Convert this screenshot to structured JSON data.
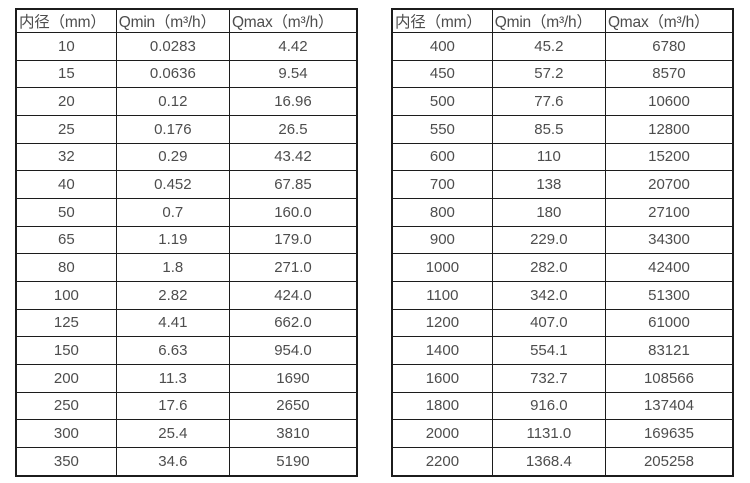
{
  "colors": {
    "background": "#ffffff",
    "border": "#1c1c1c",
    "text": "#4d4d4d"
  },
  "tables": [
    {
      "name": "flow-range-small-diameters",
      "headers": [
        "内径（mm）",
        "Qmin（m³/h）",
        "Qmax（m³/h）"
      ],
      "rows": [
        [
          "10",
          "0.0283",
          "4.42"
        ],
        [
          "15",
          "0.0636",
          "9.54"
        ],
        [
          "20",
          "0.12",
          "16.96"
        ],
        [
          "25",
          "0.176",
          "26.5"
        ],
        [
          "32",
          "0.29",
          "43.42"
        ],
        [
          "40",
          "0.452",
          "67.85"
        ],
        [
          "50",
          "0.7",
          "160.0"
        ],
        [
          "65",
          "1.19",
          "179.0"
        ],
        [
          "80",
          "1.8",
          "271.0"
        ],
        [
          "100",
          "2.82",
          "424.0"
        ],
        [
          "125",
          "4.41",
          "662.0"
        ],
        [
          "150",
          "6.63",
          "954.0"
        ],
        [
          "200",
          "11.3",
          "1690"
        ],
        [
          "250",
          "17.6",
          "2650"
        ],
        [
          "300",
          "25.4",
          "3810"
        ],
        [
          "350",
          "34.6",
          "5190"
        ]
      ]
    },
    {
      "name": "flow-range-large-diameters",
      "headers": [
        "内径（mm）",
        "Qmin（m³/h）",
        "Qmax（m³/h）"
      ],
      "rows": [
        [
          "400",
          "45.2",
          "6780"
        ],
        [
          "450",
          "57.2",
          "8570"
        ],
        [
          "500",
          "77.6",
          "10600"
        ],
        [
          "550",
          "85.5",
          "12800"
        ],
        [
          "600",
          "110",
          "15200"
        ],
        [
          "700",
          "138",
          "20700"
        ],
        [
          "800",
          "180",
          "27100"
        ],
        [
          "900",
          "229.0",
          "34300"
        ],
        [
          "1000",
          "282.0",
          "42400"
        ],
        [
          "1100",
          "342.0",
          "51300"
        ],
        [
          "1200",
          "407.0",
          "61000"
        ],
        [
          "1400",
          "554.1",
          "83121"
        ],
        [
          "1600",
          "732.7",
          "108566"
        ],
        [
          "1800",
          "916.0",
          "137404"
        ],
        [
          "2000",
          "1131.0",
          "169635"
        ],
        [
          "2200",
          "1368.4",
          "205258"
        ]
      ]
    }
  ]
}
